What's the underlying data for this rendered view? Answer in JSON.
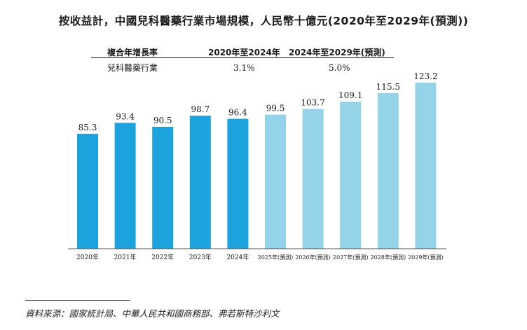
{
  "title": "按收益計，中國兒科醫藥行業市場規模，人民幣十億元(2020年至2029年(預測))",
  "cagr_table": {
    "header_label": "複合年增長率",
    "col1_header": "2020年至2024年",
    "col2_header": "2024年至2029年(預測)",
    "row_label": "兒科醫藥行業",
    "col1_value": "3.1%",
    "col2_value": "5.0%"
  },
  "source": "資料來源：國家統計局、中華人民共和國商務部、弗若斯特沙利文",
  "colors": {
    "historical": "#1CA3DE",
    "forecast": "#94D3E8"
  },
  "chart_data": {
    "type": "bar",
    "categories": [
      "2020年",
      "2021年",
      "2022年",
      "2023年",
      "2024年",
      "2025年(預測)",
      "2026年(預測)",
      "2027年(預測)",
      "2028年(預測)",
      "2029年(預測)"
    ],
    "values": [
      85.3,
      93.4,
      90.5,
      98.7,
      96.4,
      99.5,
      103.7,
      109.1,
      115.5,
      123.2
    ],
    "value_labels": [
      "85.3",
      "93.4",
      "90.5",
      "98.7",
      "96.4",
      "99.5",
      "103.7",
      "109.1",
      "115.5",
      "123.2"
    ],
    "forecast_from_index": 5,
    "ylim": [
      0,
      123.2
    ],
    "xlabel": "",
    "ylabel": "",
    "grid": false,
    "legend": "none"
  }
}
